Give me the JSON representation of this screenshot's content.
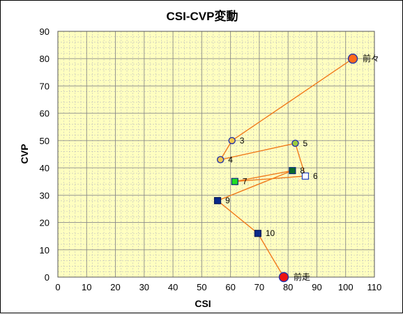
{
  "chart_data": {
    "type": "scatter",
    "title": "CSI-CVP変動",
    "xlabel": "CSI",
    "ylabel": "CVP",
    "xlim": [
      0,
      110
    ],
    "ylim": [
      0,
      90
    ],
    "xticks": [
      "0",
      "10",
      "20",
      "30",
      "40",
      "50",
      "60",
      "70",
      "80",
      "90",
      "100",
      "110"
    ],
    "yticks": [
      "0",
      "10",
      "20",
      "30",
      "40",
      "50",
      "60",
      "70",
      "80",
      "90"
    ],
    "grid": true,
    "plot_background": "#ffffc0",
    "line_color": "#f07a1c",
    "points": [
      {
        "label": "前々",
        "x": 102.5,
        "y": 80,
        "marker": "circle",
        "fill": "#ff6a1a",
        "stroke": "#2233aa"
      },
      {
        "label": "3",
        "x": 60.5,
        "y": 50,
        "marker": "circle",
        "fill": "#f2c94c",
        "stroke": "#2233aa"
      },
      {
        "label": "4",
        "x": 56.5,
        "y": 43,
        "marker": "circle",
        "fill": "#f2c94c",
        "stroke": "#2233aa"
      },
      {
        "label": "5",
        "x": 82.5,
        "y": 49,
        "marker": "circle",
        "fill": "#9ccc3c",
        "stroke": "#2233aa"
      },
      {
        "label": "6",
        "x": 86,
        "y": 37,
        "marker": "square",
        "fill": "#ffffff",
        "stroke": "#1f3fbf"
      },
      {
        "label": "7",
        "x": 61.5,
        "y": 35,
        "marker": "square",
        "fill": "#22dd22",
        "stroke": "#0a2a80"
      },
      {
        "label": "8",
        "x": 81.5,
        "y": 39,
        "marker": "square",
        "fill": "#0a6a2a",
        "stroke": "#0a2a80"
      },
      {
        "label": "9",
        "x": 55.5,
        "y": 28,
        "marker": "square",
        "fill": "#0a2a8a",
        "stroke": "#0a1a55"
      },
      {
        "label": "10",
        "x": 69.5,
        "y": 16,
        "marker": "square",
        "fill": "#0a2a8a",
        "stroke": "#0a1a55"
      },
      {
        "label": "前走",
        "x": 78.5,
        "y": 0,
        "marker": "circle",
        "fill": "#ee1111",
        "stroke": "#2233aa"
      }
    ]
  }
}
